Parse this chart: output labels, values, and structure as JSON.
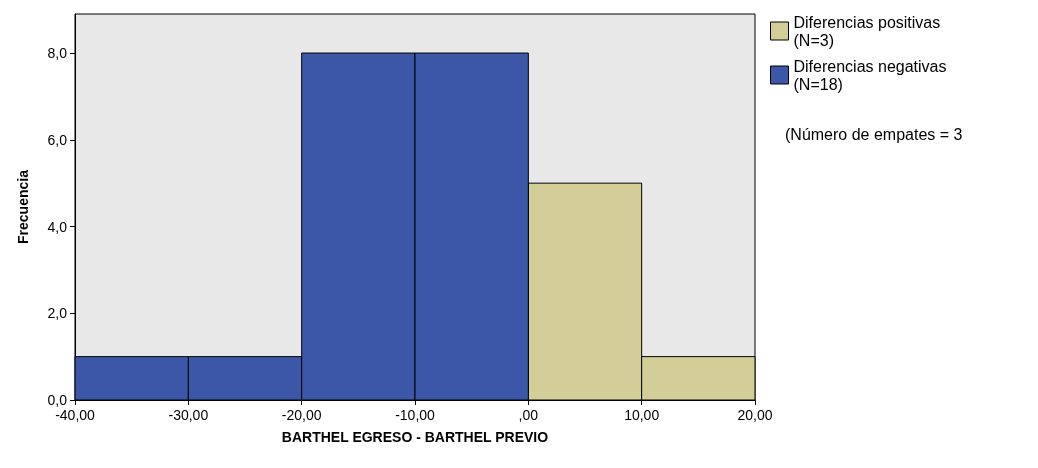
{
  "chart_data": {
    "type": "histogram",
    "xlabel": "BARTHEL EGRESO - BARTHEL PREVIO",
    "ylabel": "Frecuencia",
    "bins": [
      -40,
      -30,
      -20,
      -10,
      0,
      10,
      20
    ],
    "series": [
      {
        "name": "Diferencias positivas\n(N=3)",
        "color": "#d3ce97",
        "values": [
          null,
          null,
          null,
          null,
          5,
          1
        ]
      },
      {
        "name": "Diferencias negativas\n(N=18)",
        "color": "#3c57a8",
        "values": [
          1,
          1,
          8,
          8,
          null,
          null
        ]
      }
    ],
    "xlim": [
      -40,
      20
    ],
    "xticks": [
      {
        "value": -40,
        "label": "-40,00"
      },
      {
        "value": -30,
        "label": "-30,00"
      },
      {
        "value": -20,
        "label": "-20,00"
      },
      {
        "value": -10,
        "label": "-10,00"
      },
      {
        "value": 0,
        "label": ",00"
      },
      {
        "value": 10,
        "label": "10,00"
      },
      {
        "value": 20,
        "label": "20,00"
      }
    ],
    "ylim": [
      0,
      8.9
    ],
    "yticks": [
      {
        "value": 0,
        "label": "0,0"
      },
      {
        "value": 2,
        "label": "2,0"
      },
      {
        "value": 4,
        "label": "4,0"
      },
      {
        "value": 6,
        "label": "6,0"
      },
      {
        "value": 8,
        "label": "8,0"
      }
    ],
    "annotations": [
      "(Número de empates = 3"
    ],
    "grid": false,
    "legend": "right"
  }
}
